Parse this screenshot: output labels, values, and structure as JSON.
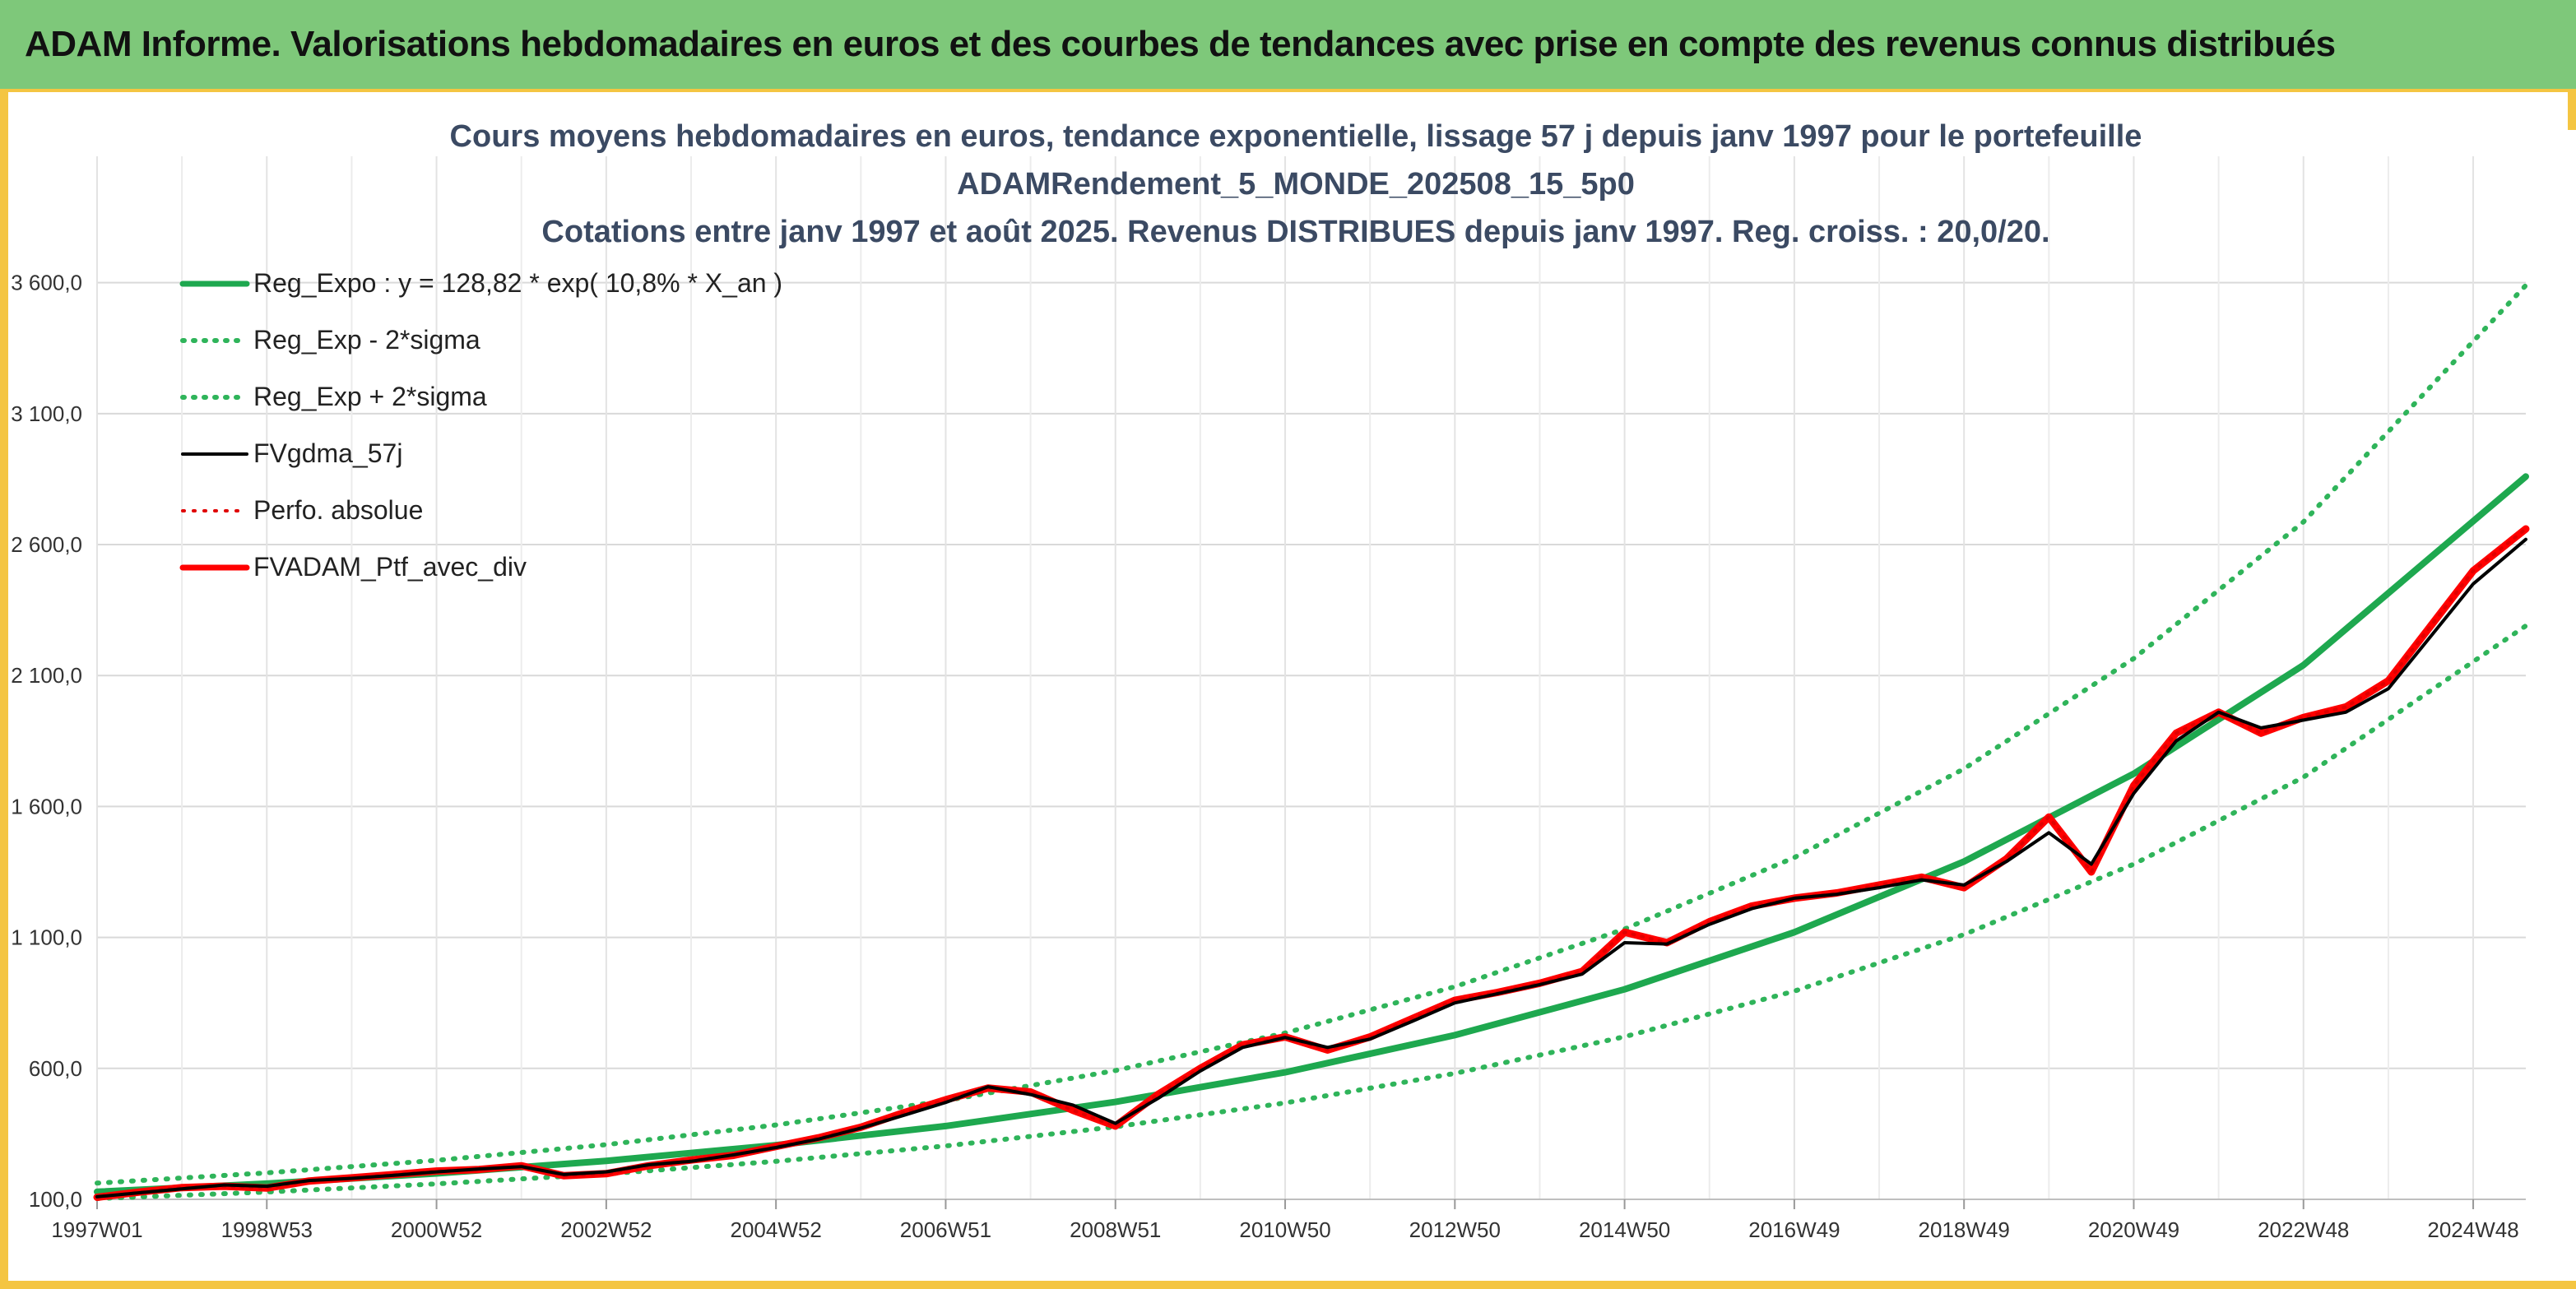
{
  "banner": {
    "text": "ADAM Informe. Valorisations hebdomadaires en euros et des courbes de tendances avec prise en compte des revenus connus distribués"
  },
  "colors": {
    "banner_bg": "#7ec87a",
    "frame_accent": "#f4c542",
    "trend_green": "#1ea84f",
    "sigma_green": "#2fb45a",
    "gdma_black": "#000000",
    "portfolio_red": "#ff0000",
    "perf_red": "#e00000"
  },
  "chart_data": {
    "type": "line",
    "title_lines": [
      "Cours moyens hebdomadaires en euros, tendance exponentielle, lissage 57 j depuis janv 1997 pour le portefeuille",
      "ADAMRendement_5_MONDE_202508_15_5p0",
      "Cotations entre janv 1997 et août 2025. Revenus DISTRIBUES depuis janv 1997. Reg. croiss. : 20,0/20."
    ],
    "x_range": [
      1997.0,
      2025.62
    ],
    "x_ticks": [
      {
        "label": "1997W01",
        "x": 1997.0
      },
      {
        "label": "1998W53",
        "x": 1999.0
      },
      {
        "label": "2000W52",
        "x": 2001.0
      },
      {
        "label": "2002W52",
        "x": 2003.0
      },
      {
        "label": "2004W52",
        "x": 2005.0
      },
      {
        "label": "2006W51",
        "x": 2007.0
      },
      {
        "label": "2008W51",
        "x": 2009.0
      },
      {
        "label": "2010W50",
        "x": 2011.0
      },
      {
        "label": "2012W50",
        "x": 2013.0
      },
      {
        "label": "2014W50",
        "x": 2015.0
      },
      {
        "label": "2016W49",
        "x": 2017.0
      },
      {
        "label": "2018W49",
        "x": 2019.0
      },
      {
        "label": "2020W49",
        "x": 2021.0
      },
      {
        "label": "2022W48",
        "x": 2023.0
      },
      {
        "label": "2024W48",
        "x": 2025.0
      }
    ],
    "y_range": [
      100,
      3800
    ],
    "y_ticks": [
      {
        "label": "100,0",
        "v": 100
      },
      {
        "label": "600,0",
        "v": 600
      },
      {
        "label": "1 100,0",
        "v": 1100
      },
      {
        "label": "1 600,0",
        "v": 1600
      },
      {
        "label": "2 100,0",
        "v": 2100
      },
      {
        "label": "2 600,0",
        "v": 2600
      },
      {
        "label": "3 100,0",
        "v": 3100
      },
      {
        "label": "3 600,0",
        "v": 3600
      }
    ],
    "grid": true,
    "legend_position": "top-left",
    "legend": [
      {
        "label": "Reg_Expo : y = 128,82 * exp( 10,8% *  X_an )",
        "style": "solid",
        "color": "#1ea84f"
      },
      {
        "label": "Reg_Exp - 2*sigma",
        "style": "dotted",
        "color": "#2fb45a"
      },
      {
        "label": "Reg_Exp + 2*sigma",
        "style": "dotted",
        "color": "#2fb45a"
      },
      {
        "label": "FVgdma_57j",
        "style": "solid",
        "color": "#000000"
      },
      {
        "label": "Perfo. absolue",
        "style": "dotted",
        "color": "#e00000"
      },
      {
        "label": "FVADAM_Ptf_avec_div",
        "style": "solid",
        "color": "#ff0000"
      }
    ],
    "trend": {
      "formula": "y = 128,82 * exp( 10,8% * X_an )",
      "a": 128.82,
      "rate": 0.108
    },
    "series": [
      {
        "name": "Reg_Expo : y = 128,82 * exp( 10,8% *  X_an )",
        "style": "solid",
        "x": [
          1997.0,
          1999.0,
          2001.0,
          2003.0,
          2005.0,
          2007.0,
          2009.0,
          2011.0,
          2013.0,
          2015.0,
          2017.0,
          2019.0,
          2021.0,
          2023.0,
          2025.62
        ],
        "values": [
          129,
          160,
          199,
          247,
          307,
          380,
          472,
          585,
          727,
          902,
          1120,
          1390,
          1725,
          2140,
          2860
        ]
      },
      {
        "name": "Reg_Exp - 2*sigma",
        "style": "dotted",
        "x": [
          1997.0,
          1999.0,
          2001.0,
          2003.0,
          2005.0,
          2007.0,
          2009.0,
          2011.0,
          2013.0,
          2015.0,
          2017.0,
          2019.0,
          2021.0,
          2023.0,
          2025.62
        ],
        "values": [
          103,
          128,
          159,
          197,
          245,
          304,
          377,
          468,
          581,
          721,
          895,
          1111,
          1380,
          1712,
          2290
        ]
      },
      {
        "name": "Reg_Exp + 2*sigma",
        "style": "dotted",
        "x": [
          1997.0,
          1999.0,
          2001.0,
          2003.0,
          2005.0,
          2007.0,
          2009.0,
          2011.0,
          2013.0,
          2015.0,
          2017.0,
          2019.0,
          2021.0,
          2023.0,
          2025.62
        ],
        "values": [
          162,
          201,
          249,
          309,
          384,
          477,
          592,
          735,
          912,
          1132,
          1405,
          1744,
          2165,
          2687,
          3590
        ]
      },
      {
        "name": "FVgdma_57j",
        "style": "solid",
        "x": [
          1997.0,
          1997.5,
          1998.0,
          1998.5,
          1999.0,
          1999.5,
          2000.0,
          2000.5,
          2001.0,
          2001.5,
          2002.0,
          2002.5,
          2003.0,
          2003.5,
          2004.0,
          2004.5,
          2005.0,
          2005.5,
          2006.0,
          2006.5,
          2007.0,
          2007.5,
          2008.0,
          2008.5,
          2009.0,
          2009.5,
          2010.0,
          2010.5,
          2011.0,
          2011.5,
          2012.0,
          2012.5,
          2013.0,
          2013.5,
          2014.0,
          2014.5,
          2015.0,
          2015.5,
          2016.0,
          2016.5,
          2017.0,
          2017.5,
          2018.0,
          2018.5,
          2019.0,
          2019.5,
          2020.0,
          2020.5,
          2021.0,
          2021.5,
          2022.0,
          2022.5,
          2023.0,
          2023.5,
          2024.0,
          2024.5,
          2025.0,
          2025.62
        ],
        "values": [
          110,
          125,
          140,
          155,
          150,
          172,
          180,
          192,
          205,
          216,
          225,
          195,
          205,
          232,
          245,
          270,
          298,
          330,
          372,
          420,
          470,
          530,
          500,
          460,
          390,
          485,
          590,
          680,
          718,
          680,
          712,
          780,
          850,
          885,
          920,
          960,
          1080,
          1075,
          1150,
          1210,
          1250,
          1265,
          1290,
          1320,
          1300,
          1390,
          1500,
          1380,
          1650,
          1850,
          1960,
          1900,
          1930,
          1960,
          2050,
          2250,
          2450,
          2620
        ]
      },
      {
        "name": "Perfo. absolue",
        "style": "dotted",
        "x": [
          1997.0,
          1997.5,
          1998.0,
          1998.5,
          1999.0,
          1999.5,
          2000.0,
          2000.5,
          2001.0,
          2001.5,
          2002.0,
          2002.5,
          2003.0,
          2003.5,
          2004.0,
          2004.5,
          2005.0,
          2005.5,
          2006.0,
          2006.5,
          2007.0,
          2007.5,
          2008.0,
          2008.5,
          2009.0,
          2009.5,
          2010.0,
          2010.5,
          2011.0,
          2011.5,
          2012.0,
          2012.5,
          2013.0,
          2013.5,
          2014.0,
          2014.5,
          2015.0,
          2015.5,
          2016.0,
          2016.5,
          2017.0,
          2017.5,
          2018.0,
          2018.5,
          2019.0,
          2019.5,
          2020.0,
          2020.5,
          2021.0,
          2021.5,
          2022.0,
          2022.5,
          2023.0,
          2023.5,
          2024.0,
          2024.5,
          2025.0,
          2025.62
        ],
        "values": [
          108,
          128,
          145,
          150,
          143,
          170,
          182,
          195,
          208,
          214,
          228,
          190,
          198,
          228,
          250,
          268,
          302,
          335,
          375,
          430,
          480,
          525,
          510,
          440,
          380,
          500,
          600,
          690,
          720,
          670,
          720,
          790,
          860,
          890,
          925,
          970,
          1120,
          1080,
          1160,
          1220,
          1250,
          1270,
          1300,
          1330,
          1290,
          1400,
          1560,
          1350,
          1680,
          1880,
          1960,
          1880,
          1940,
          1980,
          2080,
          2290,
          2500,
          2660
        ]
      },
      {
        "name": "FVADAM_Ptf_avec_div",
        "style": "solid",
        "x": [
          1997.0,
          1997.5,
          1998.0,
          1998.5,
          1999.0,
          1999.5,
          2000.0,
          2000.5,
          2001.0,
          2001.5,
          2002.0,
          2002.5,
          2003.0,
          2003.5,
          2004.0,
          2004.5,
          2005.0,
          2005.5,
          2006.0,
          2006.5,
          2007.0,
          2007.5,
          2008.0,
          2008.5,
          2009.0,
          2009.5,
          2010.0,
          2010.5,
          2011.0,
          2011.5,
          2012.0,
          2012.5,
          2013.0,
          2013.5,
          2014.0,
          2014.5,
          2015.0,
          2015.5,
          2016.0,
          2016.5,
          2017.0,
          2017.5,
          2018.0,
          2018.5,
          2019.0,
          2019.5,
          2020.0,
          2020.5,
          2021.0,
          2021.5,
          2022.0,
          2022.5,
          2023.0,
          2023.5,
          2024.0,
          2024.5,
          2025.0,
          2025.62
        ],
        "values": [
          108,
          128,
          145,
          150,
          143,
          170,
          182,
          195,
          208,
          214,
          228,
          190,
          198,
          228,
          250,
          268,
          302,
          335,
          375,
          430,
          480,
          525,
          510,
          440,
          380,
          500,
          600,
          690,
          720,
          670,
          720,
          790,
          860,
          890,
          925,
          970,
          1120,
          1080,
          1160,
          1220,
          1250,
          1270,
          1300,
          1330,
          1290,
          1400,
          1560,
          1350,
          1680,
          1880,
          1960,
          1880,
          1940,
          1980,
          2080,
          2290,
          2500,
          2660
        ]
      }
    ]
  }
}
